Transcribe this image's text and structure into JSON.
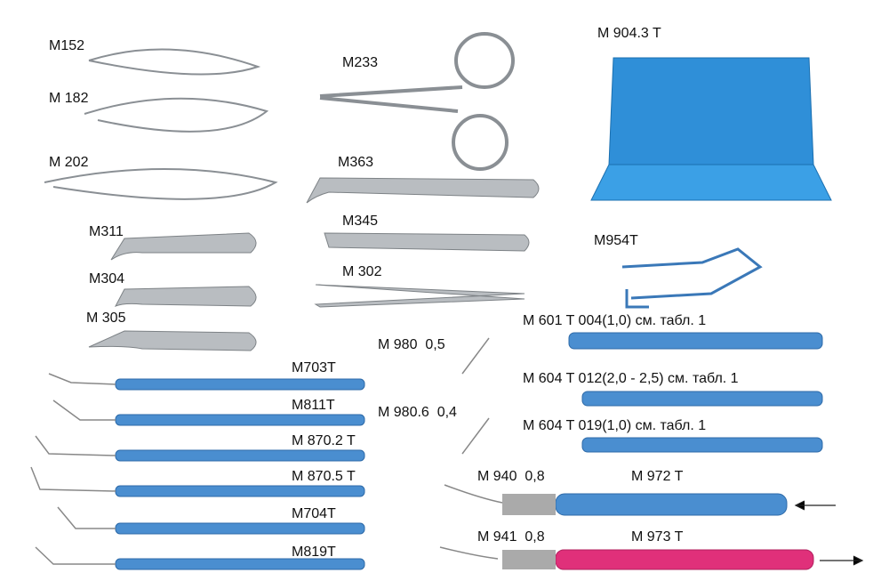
{
  "labels": [
    "M152",
    "M 182",
    "M 202",
    "M311",
    "M304",
    "M 305",
    "M233",
    "M363",
    "M345",
    "M 302",
    "M 904.3 T",
    "M954T",
    "M 601 T 004(1,0) см. табл. 1",
    "M 980  0,5",
    "M 604 T 012(2,0 - 2,5) см. табл. 1",
    "M 980.6  0,4",
    "M 604 T 019(1,0) см. табл. 1",
    "M703T",
    "M811T",
    "M 870.2 T",
    "M 870.5 T",
    "M704T",
    "M819T",
    "M 940  0,8",
    "M 972 T",
    "M 941  0,8",
    "M 973 T"
  ]
}
